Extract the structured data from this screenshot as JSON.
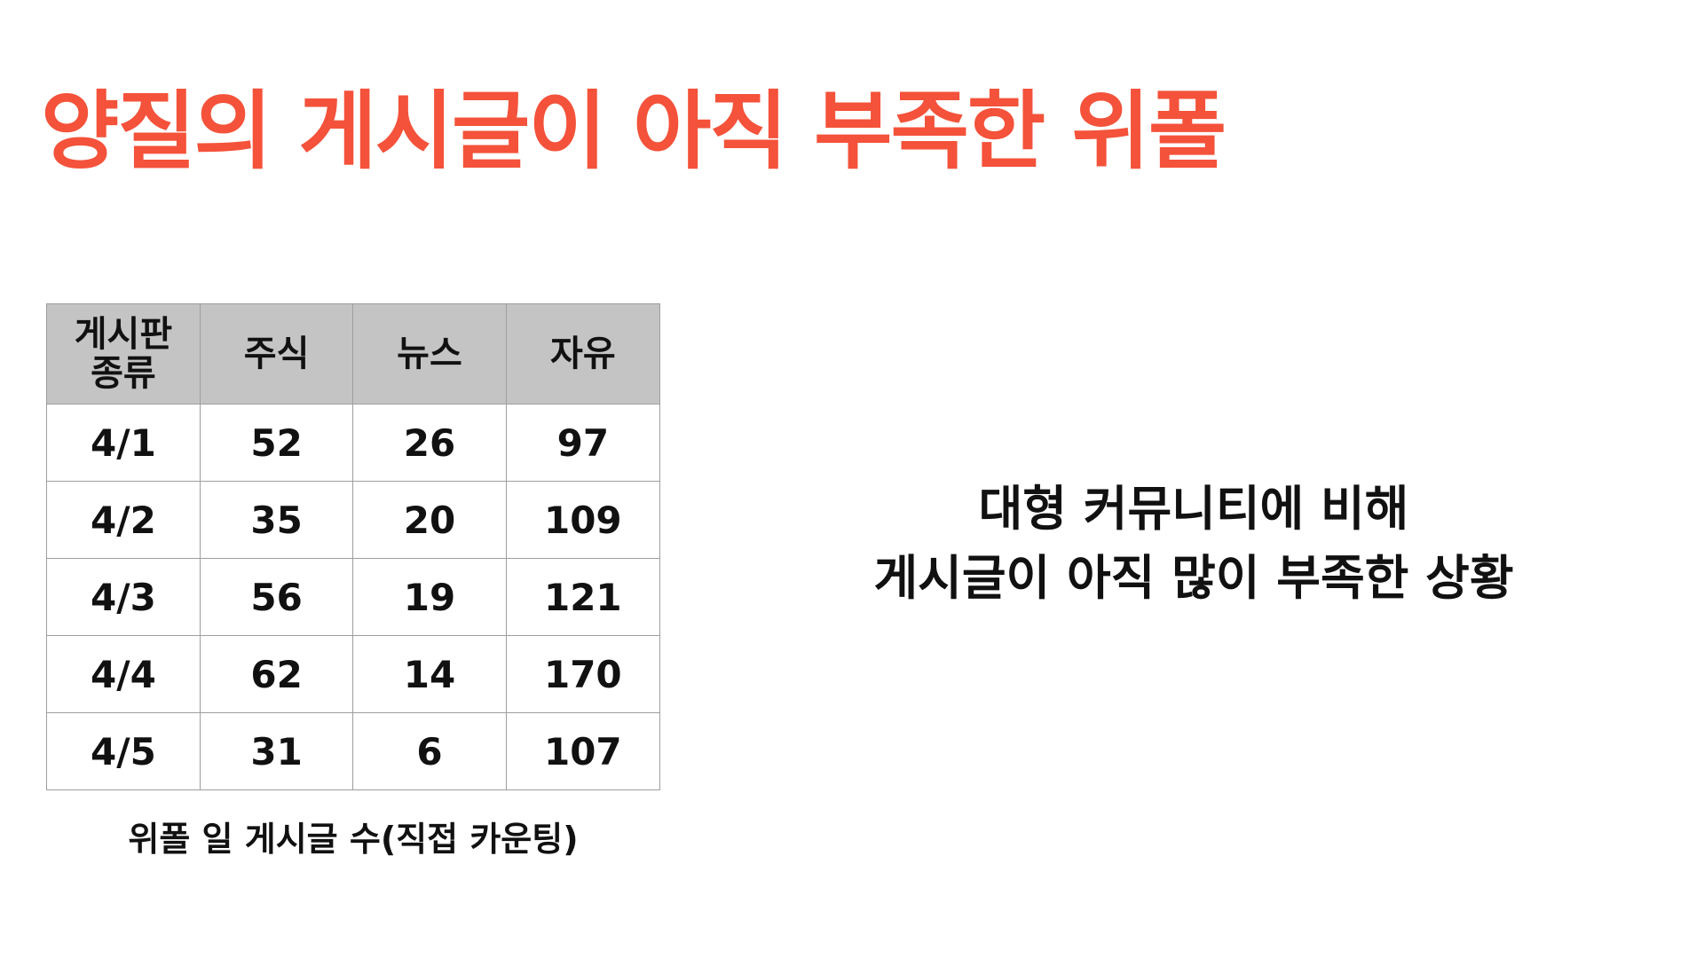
{
  "title": "양질의 게시글이 아직 부족한 위폴",
  "table": {
    "header_first_line1": "게시판",
    "header_first_line2": "종류",
    "headers": [
      "주식",
      "뉴스",
      "자유"
    ],
    "rows": [
      [
        "4/1",
        "52",
        "26",
        "97"
      ],
      [
        "4/2",
        "35",
        "20",
        "109"
      ],
      [
        "4/3",
        "56",
        "19",
        "121"
      ],
      [
        "4/4",
        "62",
        "14",
        "170"
      ],
      [
        "4/5",
        "31",
        "6",
        "107"
      ]
    ]
  },
  "caption": "위폴 일 게시글 수(직접 카운팅)",
  "note": {
    "line1": "대형 커뮤니티에 비해",
    "line2": "게시글이 아직 많이 부족한 상황"
  },
  "colors": {
    "title": "#f4523a",
    "header_bg": "#c4c4c4"
  }
}
